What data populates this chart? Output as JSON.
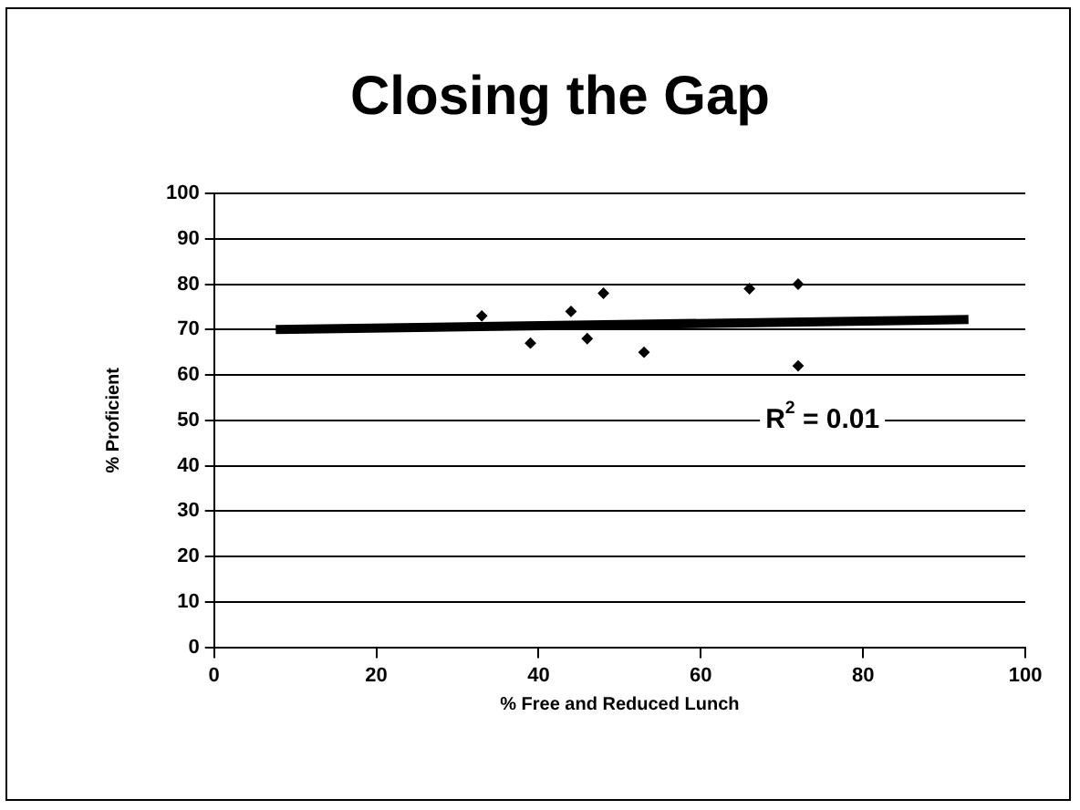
{
  "chart_data": {
    "type": "scatter",
    "title": "Closing the Gap",
    "xlabel": "% Free and Reduced Lunch",
    "ylabel": "% Proficient",
    "xlim": [
      0,
      100
    ],
    "xticks": [
      0,
      20,
      40,
      60,
      80,
      100
    ],
    "ylim": [
      0,
      100
    ],
    "yticks": [
      0,
      10,
      20,
      30,
      40,
      50,
      60,
      70,
      80,
      90,
      100
    ],
    "grid": "y",
    "legend": false,
    "marker": "diamond",
    "series": [
      {
        "color": "#000000",
        "x": [
          33,
          39,
          44,
          46,
          48,
          53,
          66,
          72,
          72
        ],
        "values": [
          73,
          67,
          74,
          68,
          78,
          65,
          79,
          80,
          62
        ]
      },
      {
        "type": "line",
        "color": "#000000",
        "marker": "none",
        "x": [
          7.6,
          93
        ],
        "values": [
          70,
          72.2
        ]
      }
    ],
    "annotations": [
      "R$^{2}$ = 0.01"
    ]
  }
}
